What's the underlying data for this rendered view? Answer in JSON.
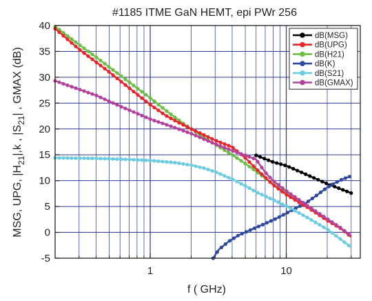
{
  "chart_data": {
    "type": "line",
    "title": "#1185 ITME GaN HEMT, epi PWr 256",
    "xlabel": "f ( GHz)",
    "ylabel_parts": [
      "MSG, UPG, |H",
      "21",
      "|,k , |S",
      "21",
      "| , GMAX (dB)"
    ],
    "x_scale": "log",
    "xlim": [
      0.2,
      35
    ],
    "ylim": [
      -5,
      40
    ],
    "xticks": [
      1,
      10
    ],
    "yticks": [
      -5,
      0,
      5,
      10,
      15,
      20,
      25,
      30,
      35,
      40
    ],
    "grid": true,
    "legend_position": "top-right",
    "series": [
      {
        "name": "dB(MSG)",
        "color": "#000000",
        "points": [
          [
            6,
            14.9
          ],
          [
            8,
            13.6
          ],
          [
            10,
            12.9
          ],
          [
            14,
            11.2
          ],
          [
            20,
            9.4
          ],
          [
            30,
            7.6
          ]
        ]
      },
      {
        "name": "dB(UPG)",
        "color": "#e8262a",
        "points": [
          [
            0.2,
            39.4
          ],
          [
            0.3,
            35.4
          ],
          [
            0.5,
            31.0
          ],
          [
            0.8,
            26.7
          ],
          [
            1.0,
            24.7
          ],
          [
            1.3,
            22.6
          ],
          [
            1.6,
            21.3
          ],
          [
            2.0,
            20.0
          ],
          [
            2.5,
            18.8
          ],
          [
            3.0,
            17.8
          ],
          [
            4.0,
            16.5
          ],
          [
            5.0,
            14.4
          ],
          [
            6.0,
            12.3
          ],
          [
            8.0,
            9.2
          ],
          [
            10.0,
            7.3
          ],
          [
            15.0,
            4.5
          ],
          [
            20.0,
            2.3
          ],
          [
            25.0,
            0.8
          ],
          [
            30.0,
            -0.9
          ]
        ]
      },
      {
        "name": "dB(H21)",
        "color": "#6dbe45",
        "points": [
          [
            0.2,
            39.8
          ],
          [
            0.3,
            36.3
          ],
          [
            0.4,
            33.9
          ],
          [
            0.6,
            30.4
          ],
          [
            0.8,
            27.9
          ],
          [
            1.0,
            26.0
          ],
          [
            1.3,
            23.6
          ],
          [
            1.6,
            21.8
          ],
          [
            2.0,
            20.0
          ],
          [
            2.5,
            18.3
          ],
          [
            3.0,
            17.0
          ],
          [
            4.0,
            15.0
          ],
          [
            5.0,
            13.3
          ],
          [
            6.0,
            11.8
          ],
          [
            8.0,
            9.3
          ],
          [
            10.0,
            7.5
          ],
          [
            15.0,
            4.6
          ],
          [
            20.0,
            2.5
          ],
          [
            25.0,
            0.9
          ],
          [
            30.0,
            -0.8
          ]
        ]
      },
      {
        "name": "dB(K)",
        "color": "#2e48a0",
        "points": [
          [
            2.9,
            -5.0
          ],
          [
            3.2,
            -3.3
          ],
          [
            3.8,
            -1.7
          ],
          [
            4.5,
            -0.5
          ],
          [
            5.5,
            0.5
          ],
          [
            7.0,
            1.7
          ],
          [
            8.5,
            2.7
          ],
          [
            10.0,
            3.7
          ],
          [
            12.0,
            4.8
          ],
          [
            14.0,
            5.7
          ],
          [
            17.0,
            7.3
          ],
          [
            20.0,
            8.7
          ],
          [
            23.0,
            9.6
          ],
          [
            26.0,
            10.3
          ],
          [
            30.0,
            10.9
          ]
        ]
      },
      {
        "name": "dB(S21)",
        "color": "#6ccde0",
        "points": [
          [
            0.2,
            14.4
          ],
          [
            0.4,
            14.3
          ],
          [
            0.7,
            14.1
          ],
          [
            1.0,
            13.9
          ],
          [
            1.5,
            13.5
          ],
          [
            2.0,
            13.0
          ],
          [
            2.5,
            12.4
          ],
          [
            3.0,
            11.7
          ],
          [
            4.0,
            10.3
          ],
          [
            5.0,
            9.0
          ],
          [
            6.0,
            7.8
          ],
          [
            8.0,
            6.3
          ],
          [
            10.0,
            5.1
          ],
          [
            14.0,
            3.0
          ],
          [
            20.0,
            0.6
          ],
          [
            25.0,
            -1.3
          ],
          [
            30.0,
            -2.9
          ]
        ]
      },
      {
        "name": "dB(GMAX)",
        "color": "#b4419b",
        "points": [
          [
            0.2,
            29.3
          ],
          [
            0.4,
            26.5
          ],
          [
            0.6,
            24.4
          ],
          [
            0.8,
            23.0
          ],
          [
            1.0,
            21.9
          ],
          [
            1.5,
            20.3
          ],
          [
            2.0,
            19.1
          ],
          [
            2.5,
            18.0
          ],
          [
            3.0,
            17.1
          ],
          [
            4.0,
            15.8
          ],
          [
            5.0,
            14.9
          ],
          [
            6.0,
            14.1
          ],
          [
            7.0,
            11.6
          ],
          [
            8.0,
            10.0
          ],
          [
            10.0,
            8.0
          ],
          [
            15.0,
            4.8
          ],
          [
            20.0,
            2.6
          ],
          [
            25.0,
            0.9
          ],
          [
            30.0,
            -0.7
          ]
        ]
      }
    ]
  }
}
